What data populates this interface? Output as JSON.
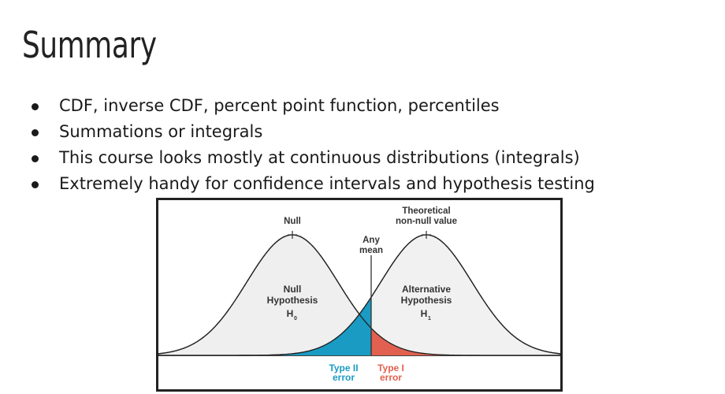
{
  "slide": {
    "title": "Summary",
    "bullets": [
      "CDF, inverse CDF, percent point function, percentiles",
      "Summations or integrals",
      "This course looks mostly at continuous distributions (integrals)",
      "Extremely handy for confidence intervals and hypothesis testing"
    ]
  },
  "diagram": {
    "null_label": "Null",
    "alt_label_line1": "Theoretical",
    "alt_label_line2": "non-null value",
    "any_mean_line1": "Any",
    "any_mean_line2": "mean",
    "null_curve_line1": "Null",
    "null_curve_line2": "Hypothesis",
    "null_symbol": "H",
    "null_subscript": "0",
    "alt_curve_line1": "Alternative",
    "alt_curve_line2": "Hypothesis",
    "alt_symbol": "H",
    "alt_subscript": "1",
    "type2_line1": "Type II",
    "type2_line2": "error",
    "type1_line1": "Type I",
    "type1_line2": "error",
    "colors": {
      "type2": "#1a9bc4",
      "type1": "#e2604f",
      "curve_fill": "#efefef",
      "outline": "#222222"
    }
  }
}
